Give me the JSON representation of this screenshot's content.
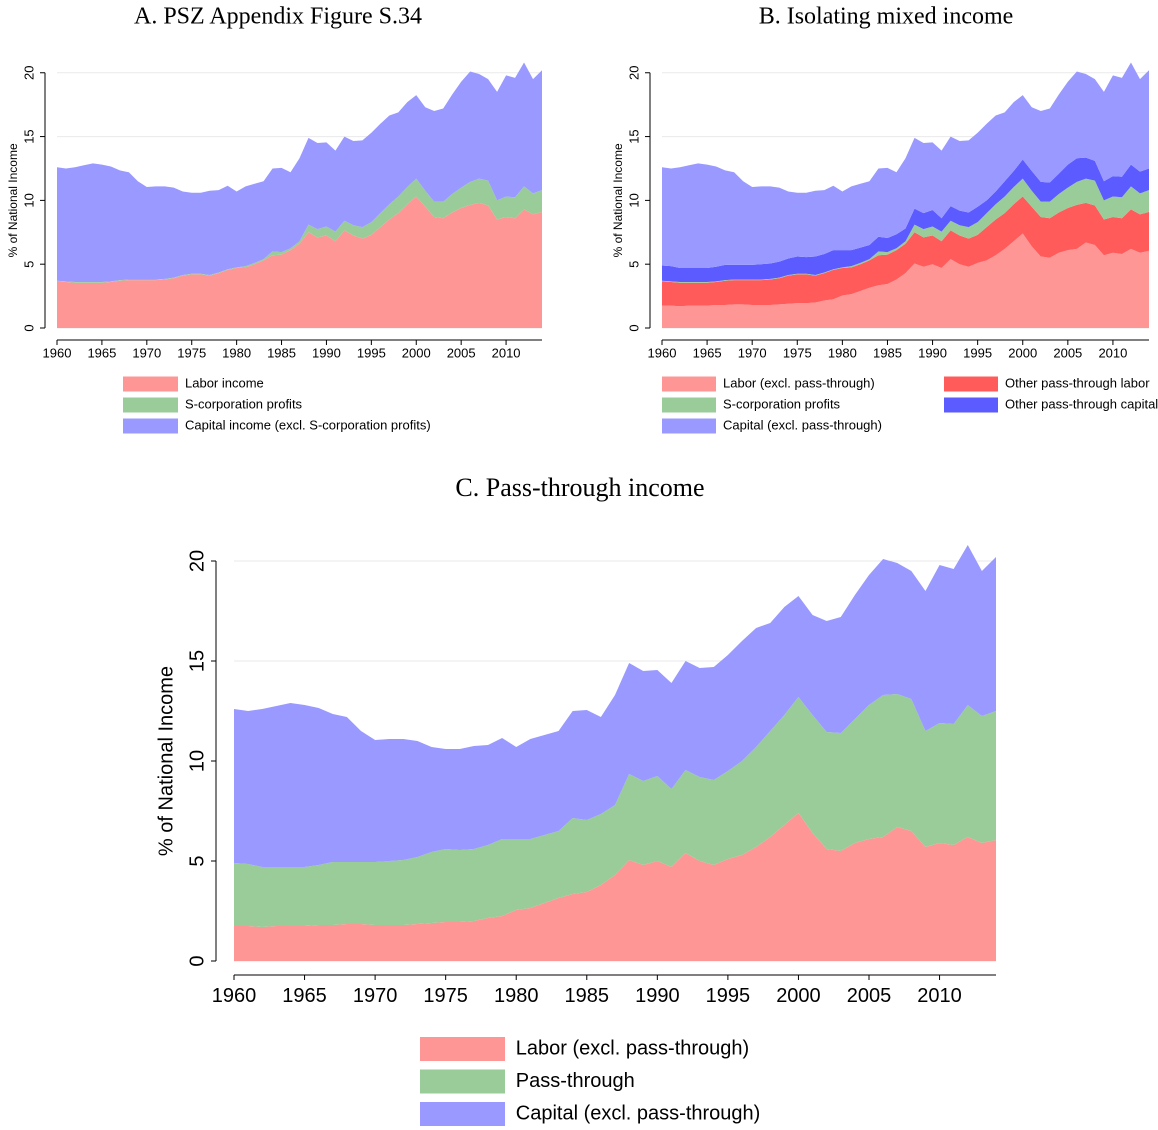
{
  "chart_data": [
    {
      "type": "area",
      "title": "A. PSZ Appendix Figure S.34",
      "y_label": "% of National Income",
      "x": [
        1960,
        1961,
        1962,
        1963,
        1964,
        1965,
        1966,
        1967,
        1968,
        1969,
        1970,
        1971,
        1972,
        1973,
        1974,
        1975,
        1976,
        1977,
        1978,
        1979,
        1980,
        1981,
        1982,
        1983,
        1984,
        1985,
        1986,
        1987,
        1988,
        1989,
        1990,
        1991,
        1992,
        1993,
        1994,
        1995,
        1996,
        1997,
        1998,
        1999,
        2000,
        2001,
        2002,
        2003,
        2004,
        2005,
        2006,
        2007,
        2008,
        2009,
        2010,
        2011,
        2012,
        2013,
        2014
      ],
      "series": [
        {
          "name": "Labor income",
          "color": "#ff9696",
          "values": [
            3.65,
            3.6,
            3.55,
            3.55,
            3.55,
            3.55,
            3.6,
            3.7,
            3.75,
            3.75,
            3.75,
            3.75,
            3.8,
            3.9,
            4.1,
            4.2,
            4.2,
            4.1,
            4.3,
            4.55,
            4.7,
            4.75,
            5.0,
            5.3,
            5.7,
            5.75,
            6.1,
            6.6,
            7.5,
            7.1,
            7.25,
            6.8,
            7.65,
            7.25,
            7.0,
            7.3,
            7.9,
            8.5,
            9.0,
            9.7,
            10.3,
            9.5,
            8.7,
            8.6,
            9.05,
            9.4,
            9.65,
            9.8,
            9.6,
            8.5,
            8.7,
            8.6,
            9.3,
            8.9,
            9.1
          ]
        },
        {
          "name": "S-corporation profits",
          "color": "#99cc99",
          "values": [
            0.05,
            0.05,
            0.05,
            0.05,
            0.05,
            0.05,
            0.05,
            0.05,
            0.05,
            0.05,
            0.05,
            0.05,
            0.05,
            0.05,
            0.05,
            0.05,
            0.05,
            0.05,
            0.05,
            0.05,
            0.05,
            0.1,
            0.1,
            0.1,
            0.3,
            0.2,
            0.15,
            0.2,
            0.6,
            0.65,
            0.7,
            0.75,
            0.75,
            0.8,
            0.9,
            1.0,
            1.1,
            1.2,
            1.3,
            1.35,
            1.4,
            1.25,
            1.2,
            1.3,
            1.45,
            1.6,
            1.8,
            1.9,
            1.95,
            1.5,
            1.6,
            1.65,
            1.8,
            1.65,
            1.7
          ]
        },
        {
          "name": "Capital income (excl. S-corporation profits)",
          "color": "#9999ff",
          "values": [
            8.9,
            8.85,
            9.0,
            9.15,
            9.3,
            9.2,
            9.0,
            8.6,
            8.4,
            7.7,
            7.25,
            7.3,
            7.25,
            7.05,
            6.55,
            6.35,
            6.35,
            6.6,
            6.45,
            6.55,
            5.95,
            6.25,
            6.2,
            6.1,
            6.5,
            6.6,
            5.95,
            6.5,
            6.8,
            6.75,
            6.6,
            6.35,
            6.6,
            6.6,
            6.8,
            7.0,
            7.0,
            6.95,
            6.6,
            6.65,
            6.55,
            6.55,
            7.1,
            7.3,
            7.8,
            8.3,
            8.65,
            8.2,
            7.95,
            8.5,
            9.5,
            9.35,
            9.7,
            8.95,
            9.4
          ]
        }
      ],
      "xlim": [
        1960,
        2014
      ],
      "ylim": [
        0,
        21
      ],
      "xticks": [
        1960,
        1965,
        1970,
        1975,
        1980,
        1985,
        1990,
        1995,
        2000,
        2005,
        2010
      ],
      "yticks": [
        0,
        5,
        10,
        15,
        20
      ],
      "grid": true
    },
    {
      "type": "area",
      "title": "B. Isolating mixed income",
      "y_label": "% of National Income",
      "x": [
        1960,
        1961,
        1962,
        1963,
        1964,
        1965,
        1966,
        1967,
        1968,
        1969,
        1970,
        1971,
        1972,
        1973,
        1974,
        1975,
        1976,
        1977,
        1978,
        1979,
        1980,
        1981,
        1982,
        1983,
        1984,
        1985,
        1986,
        1987,
        1988,
        1989,
        1990,
        1991,
        1992,
        1993,
        1994,
        1995,
        1996,
        1997,
        1998,
        1999,
        2000,
        2001,
        2002,
        2003,
        2004,
        2005,
        2006,
        2007,
        2008,
        2009,
        2010,
        2011,
        2012,
        2013,
        2014
      ],
      "series": [
        {
          "name": "Labor (excl. pass-through)",
          "color": "#ff9696",
          "values": [
            1.75,
            1.75,
            1.7,
            1.75,
            1.75,
            1.75,
            1.8,
            1.8,
            1.85,
            1.85,
            1.8,
            1.8,
            1.8,
            1.85,
            1.9,
            1.95,
            1.95,
            2.0,
            2.15,
            2.25,
            2.55,
            2.65,
            2.9,
            3.15,
            3.35,
            3.45,
            3.8,
            4.3,
            5.05,
            4.8,
            5.0,
            4.7,
            5.4,
            5.0,
            4.8,
            5.1,
            5.3,
            5.7,
            6.2,
            6.8,
            7.4,
            6.4,
            5.6,
            5.5,
            5.9,
            6.1,
            6.2,
            6.7,
            6.5,
            5.7,
            5.9,
            5.8,
            6.2,
            5.9,
            6.05
          ]
        },
        {
          "name": "Other pass-through labor",
          "color": "#ff5b5b",
          "values": [
            1.9,
            1.85,
            1.85,
            1.8,
            1.8,
            1.8,
            1.8,
            1.9,
            1.9,
            1.9,
            1.95,
            1.95,
            2.0,
            2.05,
            2.2,
            2.25,
            2.25,
            2.1,
            2.15,
            2.3,
            2.15,
            2.1,
            2.1,
            2.15,
            2.35,
            2.3,
            2.3,
            2.3,
            2.45,
            2.3,
            2.25,
            2.1,
            2.25,
            2.25,
            2.2,
            2.2,
            2.6,
            2.8,
            2.8,
            2.9,
            2.9,
            3.1,
            3.1,
            3.1,
            3.15,
            3.3,
            3.45,
            3.1,
            3.1,
            2.8,
            2.8,
            2.8,
            3.1,
            3.0,
            3.05
          ]
        },
        {
          "name": "S-corporation profits",
          "color": "#99cc99",
          "values": [
            0.05,
            0.05,
            0.05,
            0.05,
            0.05,
            0.05,
            0.05,
            0.05,
            0.05,
            0.05,
            0.05,
            0.05,
            0.05,
            0.05,
            0.05,
            0.05,
            0.05,
            0.05,
            0.05,
            0.05,
            0.05,
            0.1,
            0.1,
            0.1,
            0.3,
            0.2,
            0.15,
            0.2,
            0.6,
            0.65,
            0.7,
            0.75,
            0.75,
            0.8,
            0.9,
            1.0,
            1.1,
            1.2,
            1.3,
            1.35,
            1.4,
            1.25,
            1.2,
            1.3,
            1.45,
            1.6,
            1.8,
            1.9,
            1.95,
            1.5,
            1.6,
            1.65,
            1.8,
            1.65,
            1.7
          ]
        },
        {
          "name": "Other pass-through capital",
          "color": "#5b5bff",
          "values": [
            1.2,
            1.2,
            1.1,
            1.1,
            1.1,
            1.1,
            1.15,
            1.2,
            1.15,
            1.15,
            1.15,
            1.2,
            1.2,
            1.25,
            1.3,
            1.35,
            1.3,
            1.45,
            1.45,
            1.5,
            1.35,
            1.25,
            1.2,
            1.1,
            1.15,
            1.1,
            1.1,
            1.0,
            1.25,
            1.25,
            1.3,
            1.05,
            1.15,
            1.15,
            1.15,
            1.2,
            1.0,
            1.0,
            1.2,
            1.25,
            1.5,
            1.55,
            1.55,
            1.5,
            1.6,
            1.8,
            1.85,
            1.65,
            1.55,
            1.5,
            1.6,
            1.6,
            1.7,
            1.7,
            1.7
          ]
        },
        {
          "name": "Capital (excl. pass-through)",
          "color": "#9999ff",
          "values": [
            7.7,
            7.65,
            7.9,
            8.05,
            8.2,
            8.1,
            7.85,
            7.4,
            7.25,
            6.55,
            6.1,
            6.1,
            6.05,
            5.8,
            5.25,
            5.0,
            5.05,
            5.15,
            5.0,
            5.05,
            4.6,
            5.0,
            5.0,
            5.0,
            5.35,
            5.5,
            4.85,
            5.5,
            5.55,
            5.5,
            5.3,
            5.3,
            5.45,
            5.45,
            5.65,
            5.8,
            6.0,
            5.95,
            5.4,
            5.4,
            5.05,
            5.0,
            5.55,
            5.8,
            6.2,
            6.5,
            6.8,
            6.55,
            6.4,
            7.0,
            7.9,
            7.75,
            8.0,
            7.25,
            7.7
          ]
        }
      ],
      "xlim": [
        1960,
        2014
      ],
      "ylim": [
        0,
        21
      ],
      "xticks": [
        1960,
        1965,
        1970,
        1975,
        1980,
        1985,
        1990,
        1995,
        2000,
        2005,
        2010
      ],
      "yticks": [
        0,
        5,
        10,
        15,
        20
      ],
      "grid": true
    },
    {
      "type": "area",
      "title": "C. Pass-through income",
      "y_label": "% of National Income",
      "x": [
        1960,
        1961,
        1962,
        1963,
        1964,
        1965,
        1966,
        1967,
        1968,
        1969,
        1970,
        1971,
        1972,
        1973,
        1974,
        1975,
        1976,
        1977,
        1978,
        1979,
        1980,
        1981,
        1982,
        1983,
        1984,
        1985,
        1986,
        1987,
        1988,
        1989,
        1990,
        1991,
        1992,
        1993,
        1994,
        1995,
        1996,
        1997,
        1998,
        1999,
        2000,
        2001,
        2002,
        2003,
        2004,
        2005,
        2006,
        2007,
        2008,
        2009,
        2010,
        2011,
        2012,
        2013,
        2014
      ],
      "series": [
        {
          "name": "Labor (excl. pass-through)",
          "color": "#ff9696",
          "values": [
            1.75,
            1.75,
            1.7,
            1.75,
            1.75,
            1.75,
            1.8,
            1.8,
            1.85,
            1.85,
            1.8,
            1.8,
            1.8,
            1.85,
            1.9,
            1.95,
            1.95,
            2.0,
            2.15,
            2.25,
            2.55,
            2.65,
            2.9,
            3.15,
            3.35,
            3.45,
            3.8,
            4.3,
            5.05,
            4.8,
            5.0,
            4.7,
            5.4,
            5.0,
            4.8,
            5.1,
            5.3,
            5.7,
            6.2,
            6.8,
            7.4,
            6.4,
            5.6,
            5.5,
            5.9,
            6.1,
            6.2,
            6.7,
            6.5,
            5.7,
            5.9,
            5.8,
            6.2,
            5.9,
            6.05
          ]
        },
        {
          "name": "Pass-through",
          "color": "#99cc99",
          "values": [
            3.15,
            3.1,
            3.0,
            2.95,
            2.95,
            2.95,
            3.0,
            3.15,
            3.1,
            3.1,
            3.15,
            3.2,
            3.25,
            3.35,
            3.55,
            3.65,
            3.6,
            3.6,
            3.65,
            3.85,
            3.55,
            3.45,
            3.4,
            3.35,
            3.8,
            3.6,
            3.55,
            3.5,
            4.3,
            4.2,
            4.25,
            3.9,
            4.15,
            4.2,
            4.25,
            4.4,
            4.7,
            5.0,
            5.3,
            5.5,
            5.8,
            5.9,
            5.85,
            5.9,
            6.2,
            6.7,
            7.1,
            6.65,
            6.6,
            5.8,
            6.0,
            6.05,
            6.6,
            6.35,
            6.45
          ]
        },
        {
          "name": "Capital (excl. pass-through)",
          "color": "#9999ff",
          "values": [
            7.7,
            7.65,
            7.9,
            8.05,
            8.2,
            8.1,
            7.85,
            7.4,
            7.25,
            6.55,
            6.1,
            6.1,
            6.05,
            5.8,
            5.25,
            5.0,
            5.05,
            5.15,
            5.0,
            5.05,
            4.6,
            5.0,
            5.0,
            5.0,
            5.35,
            5.5,
            4.85,
            5.5,
            5.55,
            5.5,
            5.3,
            5.3,
            5.45,
            5.45,
            5.65,
            5.8,
            6.0,
            5.95,
            5.4,
            5.4,
            5.05,
            5.0,
            5.55,
            5.8,
            6.2,
            6.5,
            6.8,
            6.55,
            6.4,
            7.0,
            7.9,
            7.75,
            8.0,
            7.25,
            7.7
          ]
        }
      ],
      "xlim": [
        1960,
        2014
      ],
      "ylim": [
        0,
        21
      ],
      "xticks": [
        1960,
        1965,
        1970,
        1975,
        1980,
        1985,
        1990,
        1995,
        2000,
        2005,
        2010
      ],
      "yticks": [
        0,
        5,
        10,
        15,
        20
      ],
      "grid": true
    }
  ]
}
